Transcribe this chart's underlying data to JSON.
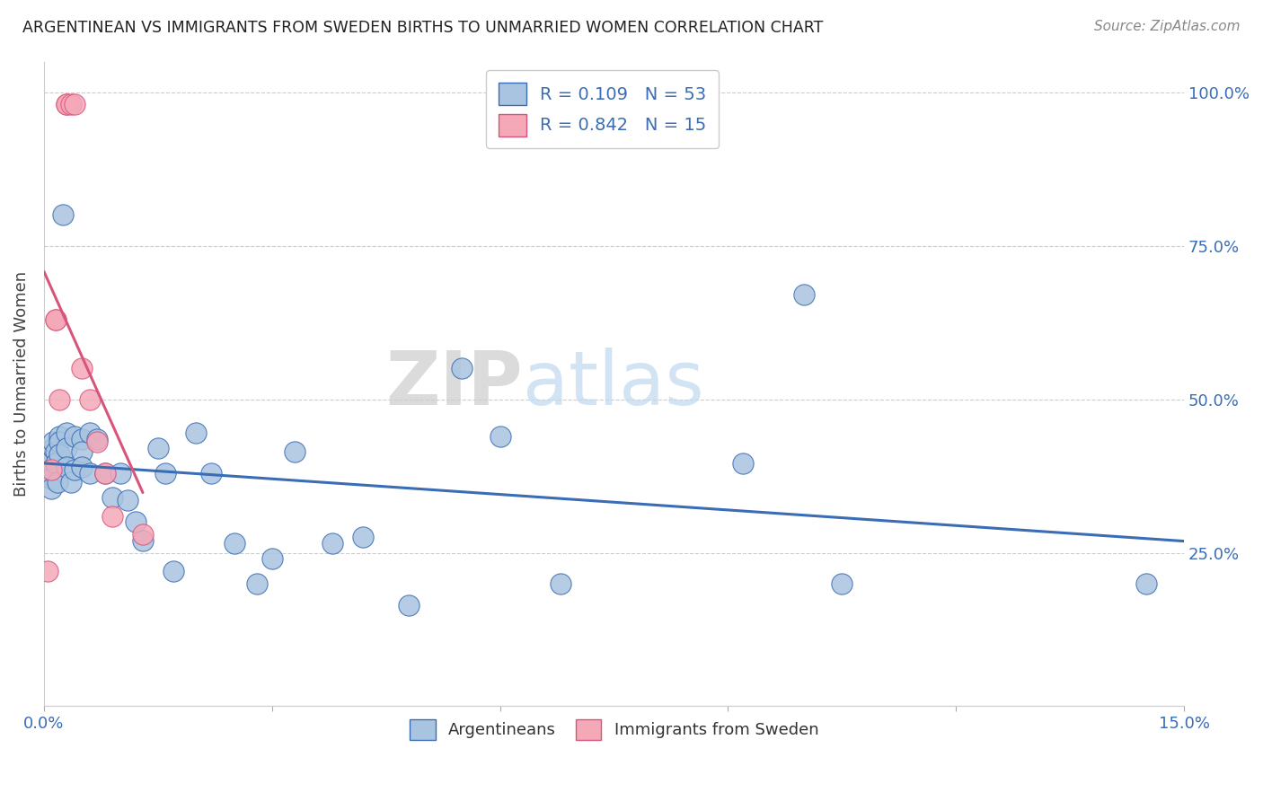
{
  "title": "ARGENTINEAN VS IMMIGRANTS FROM SWEDEN BIRTHS TO UNMARRIED WOMEN CORRELATION CHART",
  "source": "Source: ZipAtlas.com",
  "ylabel": "Births to Unmarried Women",
  "xlim": [
    0.0,
    0.15
  ],
  "ylim": [
    0.0,
    1.05
  ],
  "blue_color": "#a8c4e0",
  "pink_color": "#f4a8b8",
  "blue_line_color": "#3a6db5",
  "pink_line_color": "#d9547a",
  "legend_R_blue": "0.109",
  "legend_N_blue": "53",
  "legend_R_pink": "0.842",
  "legend_N_pink": "15",
  "legend_label_blue": "Argentineans",
  "legend_label_pink": "Immigrants from Sweden",
  "watermark_zip": "ZIP",
  "watermark_atlas": "atlas",
  "blue_x": [
    0.0005,
    0.0005,
    0.0008,
    0.001,
    0.001,
    0.001,
    0.001,
    0.0012,
    0.0012,
    0.0015,
    0.0015,
    0.0018,
    0.002,
    0.002,
    0.002,
    0.0025,
    0.003,
    0.003,
    0.003,
    0.0035,
    0.004,
    0.004,
    0.005,
    0.005,
    0.005,
    0.006,
    0.006,
    0.007,
    0.008,
    0.009,
    0.01,
    0.011,
    0.012,
    0.013,
    0.015,
    0.016,
    0.017,
    0.02,
    0.022,
    0.025,
    0.028,
    0.03,
    0.033,
    0.038,
    0.042,
    0.048,
    0.055,
    0.06,
    0.068,
    0.092,
    0.1,
    0.105,
    0.145
  ],
  "blue_y": [
    0.385,
    0.375,
    0.395,
    0.4,
    0.385,
    0.37,
    0.355,
    0.42,
    0.43,
    0.415,
    0.395,
    0.365,
    0.44,
    0.43,
    0.41,
    0.8,
    0.445,
    0.42,
    0.39,
    0.365,
    0.44,
    0.385,
    0.435,
    0.415,
    0.39,
    0.445,
    0.38,
    0.435,
    0.38,
    0.34,
    0.38,
    0.335,
    0.3,
    0.27,
    0.42,
    0.38,
    0.22,
    0.445,
    0.38,
    0.265,
    0.2,
    0.24,
    0.415,
    0.265,
    0.275,
    0.165,
    0.55,
    0.44,
    0.2,
    0.395,
    0.67,
    0.2,
    0.2
  ],
  "pink_x": [
    0.0005,
    0.001,
    0.0015,
    0.0015,
    0.002,
    0.003,
    0.003,
    0.0035,
    0.004,
    0.005,
    0.006,
    0.007,
    0.008,
    0.009,
    0.013
  ],
  "pink_y": [
    0.22,
    0.385,
    0.63,
    0.63,
    0.5,
    0.98,
    0.98,
    0.98,
    0.98,
    0.55,
    0.5,
    0.43,
    0.38,
    0.31,
    0.28
  ]
}
